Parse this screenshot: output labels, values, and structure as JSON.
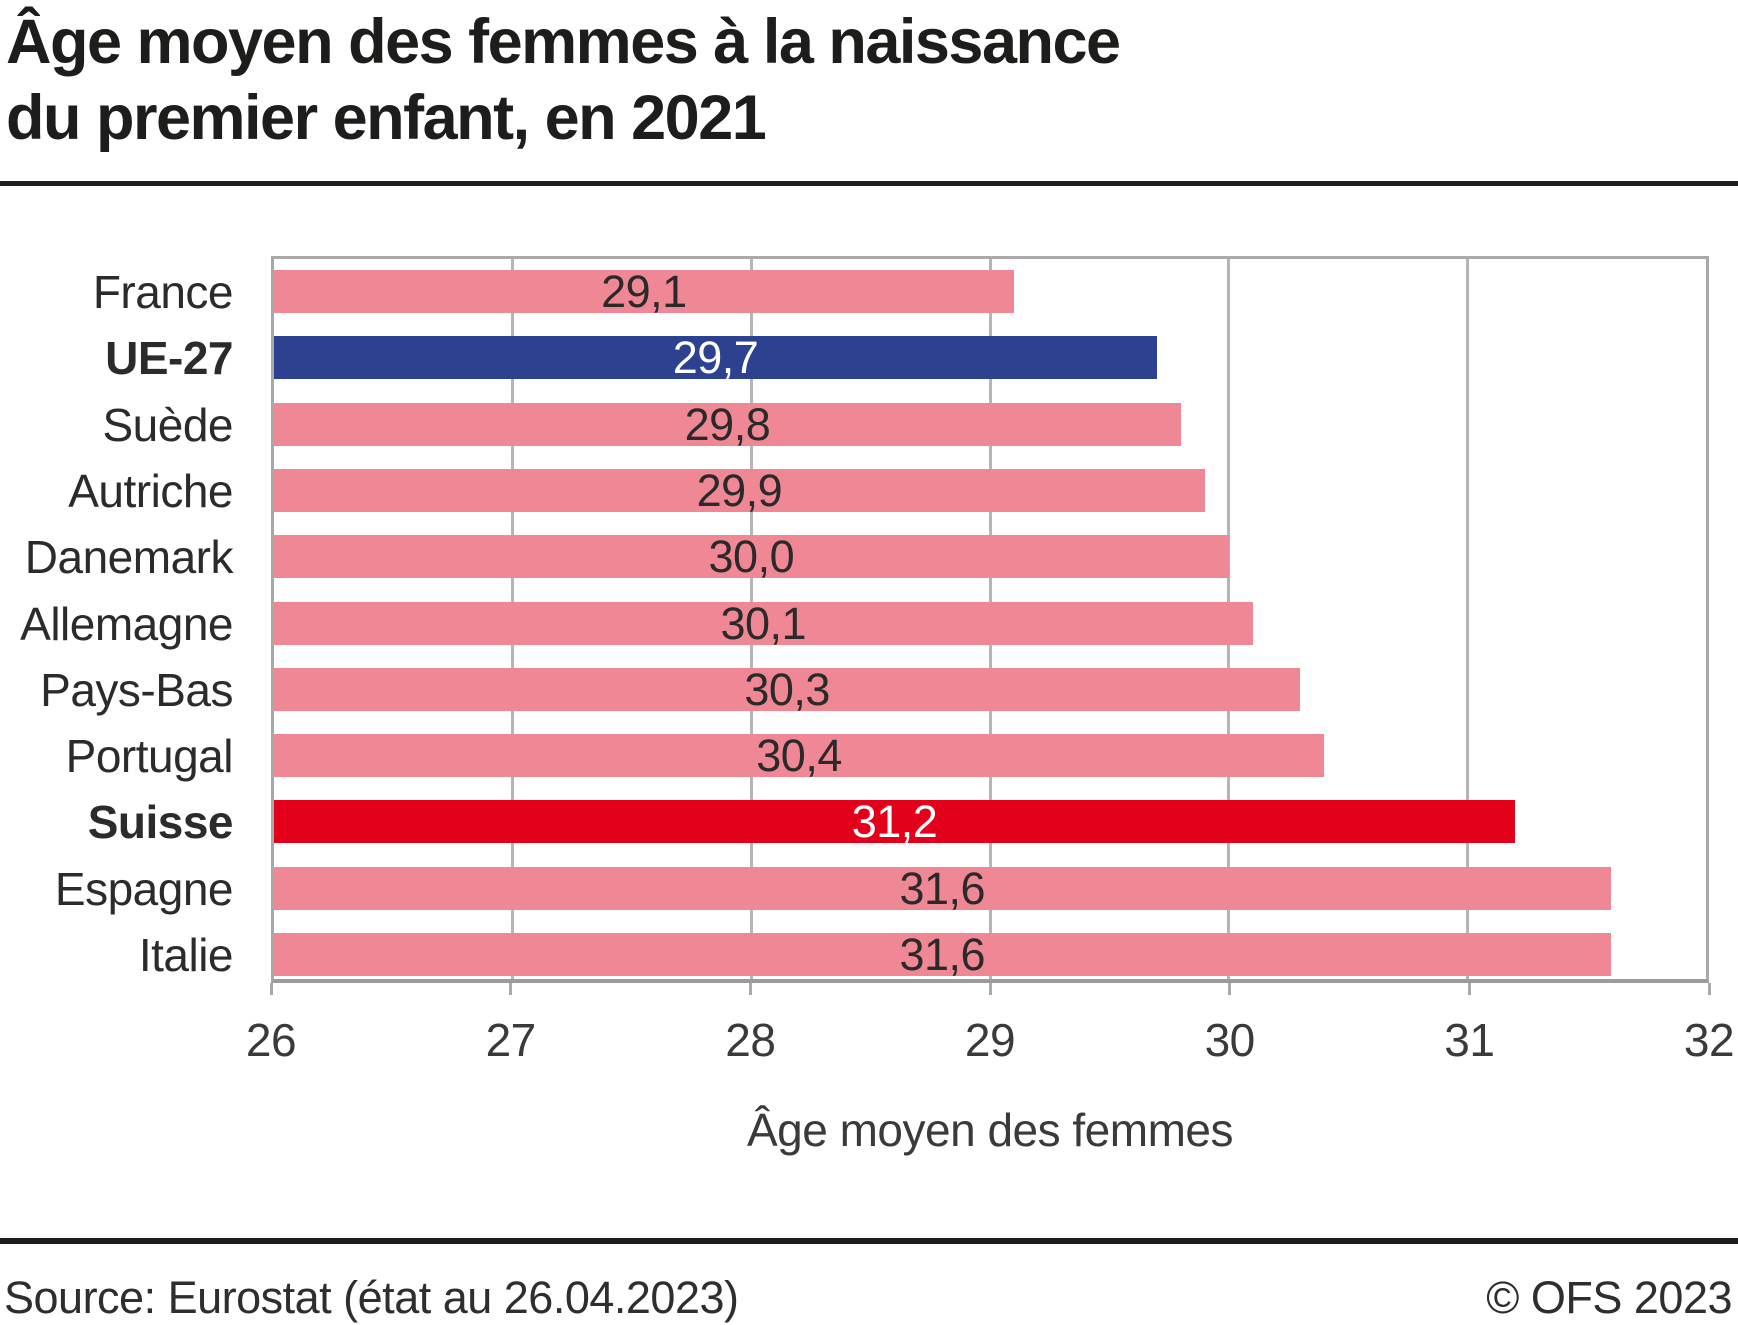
{
  "header": {
    "title_line1": "Âge moyen des femmes à la naissance",
    "title_line2": "du premier enfant, en 2021"
  },
  "chart_data": {
    "type": "bar",
    "orientation": "horizontal",
    "title": "Âge moyen des femmes à la naissance du premier enfant, en 2021",
    "categories": [
      "France",
      "UE-27",
      "Suède",
      "Autriche",
      "Danemark",
      "Allemagne",
      "Pays-Bas",
      "Portugal",
      "Suisse",
      "Espagne",
      "Italie"
    ],
    "values": [
      29.1,
      29.7,
      29.8,
      29.9,
      30.0,
      30.1,
      30.3,
      30.4,
      31.2,
      31.6,
      31.6
    ],
    "value_labels": [
      "29,1",
      "29,7",
      "29,8",
      "29,9",
      "30,0",
      "30,1",
      "30,3",
      "30,4",
      "31,2",
      "31,6",
      "31,6"
    ],
    "bar_colors": [
      "#ef8795",
      "#2c4190",
      "#ef8795",
      "#ef8795",
      "#ef8795",
      "#ef8795",
      "#ef8795",
      "#ef8795",
      "#e2001a",
      "#ef8795",
      "#ef8795"
    ],
    "value_text_colors": [
      "#2a2a2a",
      "#ffffff",
      "#2a2a2a",
      "#2a2a2a",
      "#2a2a2a",
      "#2a2a2a",
      "#2a2a2a",
      "#2a2a2a",
      "#ffffff",
      "#2a2a2a",
      "#2a2a2a"
    ],
    "bold_categories": [
      "UE-27",
      "Suisse"
    ],
    "xlabel": "Âge moyen des femmes",
    "xlim": [
      26,
      32
    ],
    "xticks": [
      26,
      27,
      28,
      29,
      30,
      31,
      32
    ],
    "grid": "vertical-on",
    "legend": "none",
    "colors": {
      "default_bar": "#ef8795",
      "eu_bar": "#2c4190",
      "switzerland_bar": "#e2001a",
      "grid": "#b5b5b5",
      "frame": "#a9a9a9",
      "rule": "#1d1d1b"
    }
  },
  "footer": {
    "source": "Source: Eurostat (état au 26.04.2023)",
    "copyright": "© OFS 2023"
  }
}
